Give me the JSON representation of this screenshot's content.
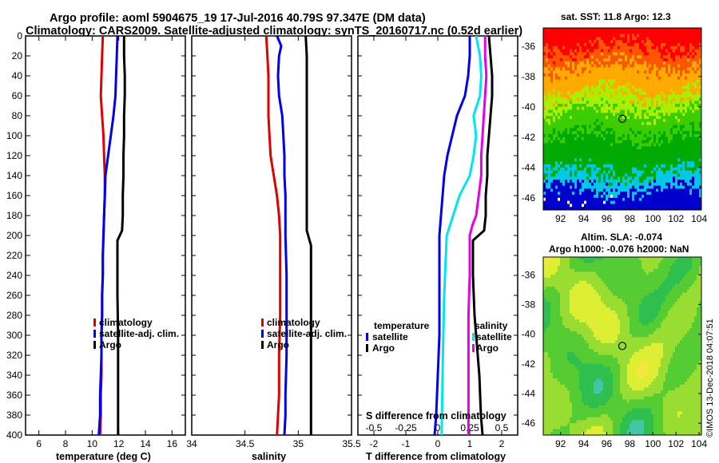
{
  "title": {
    "line1": "Argo profile: aoml 5904675_19 17-Jul-2016 40.79S 97.347E (DM data)",
    "line2": "Climatology: CARS2009. Satellite-adjusted climatology: synTS_20160717.nc (0.52d earlier)"
  },
  "colors": {
    "climatology": "#e00000",
    "satellite": "#0000ee",
    "argo": "#000000",
    "s_satellite": "#00e6f0",
    "s_argo": "#e600e6"
  },
  "chart_data": [
    {
      "type": "line",
      "panel": "temperature",
      "xlabel": "temperature (deg C)",
      "ylabel": "",
      "xlim": [
        5,
        17
      ],
      "ylim": [
        400,
        0
      ],
      "xticks": [
        6,
        8,
        10,
        12,
        14,
        16
      ],
      "yticks": [
        0,
        20,
        40,
        60,
        80,
        100,
        120,
        140,
        160,
        180,
        200,
        220,
        240,
        260,
        280,
        300,
        320,
        340,
        360,
        380,
        400
      ],
      "legend": [
        "climatology",
        "satellite-adj. clim.",
        "Argo"
      ],
      "series": [
        {
          "name": "climatology",
          "color_key": "climatology",
          "points": [
            [
              10.8,
              0
            ],
            [
              10.75,
              20
            ],
            [
              10.7,
              40
            ],
            [
              10.65,
              60
            ],
            [
              10.75,
              80
            ],
            [
              10.85,
              100
            ],
            [
              10.9,
              120
            ],
            [
              10.95,
              140
            ],
            [
              10.95,
              160
            ],
            [
              10.9,
              180
            ],
            [
              10.85,
              200
            ],
            [
              10.8,
              220
            ],
            [
              10.8,
              240
            ],
            [
              10.75,
              260
            ],
            [
              10.75,
              280
            ],
            [
              10.7,
              300
            ],
            [
              10.7,
              320
            ],
            [
              10.7,
              340
            ],
            [
              10.65,
              360
            ],
            [
              10.65,
              380
            ],
            [
              10.6,
              400
            ]
          ]
        },
        {
          "name": "satellite-adj. clim.",
          "color_key": "satellite",
          "points": [
            [
              11.9,
              0
            ],
            [
              11.85,
              20
            ],
            [
              11.8,
              40
            ],
            [
              11.75,
              60
            ],
            [
              11.6,
              80
            ],
            [
              11.4,
              100
            ],
            [
              11.2,
              120
            ],
            [
              11.0,
              140
            ],
            [
              10.95,
              160
            ],
            [
              10.9,
              180
            ],
            [
              10.85,
              200
            ],
            [
              10.8,
              220
            ],
            [
              10.8,
              240
            ],
            [
              10.75,
              260
            ],
            [
              10.75,
              280
            ],
            [
              10.7,
              300
            ],
            [
              10.7,
              320
            ],
            [
              10.65,
              340
            ],
            [
              10.6,
              360
            ],
            [
              10.6,
              380
            ],
            [
              10.5,
              400
            ]
          ]
        },
        {
          "name": "Argo",
          "color_key": "argo",
          "points": [
            [
              12.4,
              0
            ],
            [
              12.4,
              20
            ],
            [
              12.45,
              40
            ],
            [
              12.45,
              60
            ],
            [
              12.4,
              80
            ],
            [
              12.4,
              100
            ],
            [
              12.35,
              120
            ],
            [
              12.35,
              140
            ],
            [
              12.3,
              160
            ],
            [
              12.3,
              180
            ],
            [
              12.25,
              195
            ],
            [
              11.9,
              205
            ],
            [
              11.9,
              220
            ],
            [
              11.9,
              260
            ],
            [
              11.95,
              300
            ],
            [
              11.95,
              340
            ],
            [
              11.95,
              380
            ],
            [
              11.95,
              400
            ]
          ]
        }
      ]
    },
    {
      "type": "line",
      "panel": "salinity",
      "xlabel": "salinity",
      "xlim": [
        34,
        35.5
      ],
      "ylim": [
        400,
        0
      ],
      "xticks": [
        34,
        34.5,
        35,
        35.5
      ],
      "legend": [
        "climatology",
        "satellite-adj. clim.",
        "Argo"
      ],
      "series": [
        {
          "name": "climatology",
          "color_key": "climatology",
          "points": [
            [
              34.7,
              0
            ],
            [
              34.71,
              20
            ],
            [
              34.72,
              40
            ],
            [
              34.72,
              60
            ],
            [
              34.72,
              80
            ],
            [
              34.73,
              100
            ],
            [
              34.74,
              120
            ],
            [
              34.77,
              140
            ],
            [
              34.8,
              160
            ],
            [
              34.82,
              180
            ],
            [
              34.83,
              200
            ],
            [
              34.83,
              240
            ],
            [
              34.83,
              280
            ],
            [
              34.82,
              320
            ],
            [
              34.82,
              360
            ],
            [
              34.81,
              380
            ],
            [
              34.8,
              400
            ]
          ]
        },
        {
          "name": "satellite-adj. clim.",
          "color_key": "satellite",
          "points": [
            [
              34.8,
              0
            ],
            [
              34.84,
              10
            ],
            [
              34.82,
              20
            ],
            [
              34.81,
              40
            ],
            [
              34.82,
              60
            ],
            [
              34.85,
              80
            ],
            [
              34.86,
              100
            ],
            [
              34.87,
              120
            ],
            [
              34.87,
              140
            ],
            [
              34.88,
              160
            ],
            [
              34.88,
              200
            ],
            [
              34.89,
              240
            ],
            [
              34.89,
              280
            ],
            [
              34.89,
              320
            ],
            [
              34.88,
              360
            ],
            [
              34.88,
              380
            ],
            [
              34.87,
              400
            ]
          ]
        },
        {
          "name": "Argo",
          "color_key": "argo",
          "points": [
            [
              35.07,
              0
            ],
            [
              35.08,
              20
            ],
            [
              35.08,
              60
            ],
            [
              35.08,
              100
            ],
            [
              35.08,
              140
            ],
            [
              35.08,
              195
            ],
            [
              35.12,
              210
            ],
            [
              35.12,
              240
            ],
            [
              35.12,
              300
            ],
            [
              35.12,
              360
            ],
            [
              35.12,
              400
            ]
          ]
        }
      ]
    },
    {
      "type": "line",
      "panel": "difference",
      "xlabel": "T difference from climatology",
      "xlabel_top": "S difference from climatology",
      "xlim": [
        -2.5,
        2.5
      ],
      "ylim": [
        400,
        0
      ],
      "xticks": [
        -2,
        -1,
        0,
        1,
        2
      ],
      "xticklabels": [
        "-2",
        "-1",
        "0",
        "1",
        "2"
      ],
      "s_xticks": [
        -0.5,
        -0.25,
        0,
        0.25,
        0.5
      ],
      "s_xticklabels": [
        "-0.5",
        "-0.25",
        "0",
        "0.25",
        "0.5"
      ],
      "legend_left_title": "temperature",
      "legend_right_title": "salinity",
      "legend": [
        "satellite",
        "Argo"
      ],
      "series": [
        {
          "name": "T satellite",
          "color_key": "satellite",
          "points": [
            [
              1.0,
              0
            ],
            [
              1.0,
              20
            ],
            [
              0.95,
              40
            ],
            [
              0.85,
              60
            ],
            [
              0.6,
              80
            ],
            [
              0.45,
              100
            ],
            [
              0.3,
              120
            ],
            [
              0.2,
              140
            ],
            [
              0.15,
              160
            ],
            [
              0.1,
              180
            ],
            [
              0.05,
              200
            ],
            [
              0.05,
              300
            ],
            [
              0.0,
              340
            ],
            [
              -0.05,
              380
            ],
            [
              -0.1,
              400
            ]
          ]
        },
        {
          "name": "S satellite",
          "color_key": "s_satellite",
          "points": [
            [
              0.3,
              0
            ],
            [
              0.33,
              20
            ],
            [
              0.34,
              40
            ],
            [
              0.33,
              60
            ],
            [
              0.28,
              80
            ],
            [
              0.3,
              100
            ],
            [
              0.28,
              120
            ],
            [
              0.25,
              140
            ],
            [
              0.17,
              160
            ],
            [
              0.12,
              180
            ],
            [
              0.07,
              200
            ],
            [
              0.05,
              260
            ],
            [
              0.04,
              320
            ],
            [
              0.03,
              400
            ]
          ]
        },
        {
          "name": "T Argo",
          "color_key": "argo",
          "points": [
            [
              1.6,
              0
            ],
            [
              1.65,
              20
            ],
            [
              1.7,
              40
            ],
            [
              1.7,
              60
            ],
            [
              1.65,
              80
            ],
            [
              1.6,
              100
            ],
            [
              1.55,
              120
            ],
            [
              1.55,
              140
            ],
            [
              1.5,
              160
            ],
            [
              1.5,
              180
            ],
            [
              1.45,
              195
            ],
            [
              1.1,
              205
            ],
            [
              1.1,
              240
            ],
            [
              1.15,
              280
            ],
            [
              1.2,
              300
            ],
            [
              1.3,
              340
            ],
            [
              1.35,
              380
            ],
            [
              1.4,
              400
            ]
          ]
        },
        {
          "name": "S Argo",
          "color_key": "s_argo",
          "points": [
            [
              0.37,
              0
            ],
            [
              0.37,
              20
            ],
            [
              0.38,
              40
            ],
            [
              0.37,
              60
            ],
            [
              0.36,
              80
            ],
            [
              0.35,
              100
            ],
            [
              0.34,
              120
            ],
            [
              0.34,
              140
            ],
            [
              0.32,
              160
            ],
            [
              0.3,
              180
            ],
            [
              0.27,
              190
            ],
            [
              0.25,
              200
            ],
            [
              0.25,
              240
            ],
            [
              0.24,
              280
            ],
            [
              0.24,
              320
            ],
            [
              0.24,
              360
            ],
            [
              0.24,
              400
            ]
          ]
        }
      ]
    },
    {
      "type": "heatmap",
      "panel": "sst_map",
      "title": "sat. SST: 11.8 Argo: 12.3",
      "xlim": [
        90.5,
        104.2
      ],
      "ylim": [
        -46.8,
        -34.8
      ],
      "xticks": [
        92,
        94,
        96,
        98,
        100,
        102,
        104
      ],
      "yticks": [
        -36,
        -38,
        -40,
        -42,
        -44,
        -46
      ],
      "marker": [
        97.35,
        -40.79
      ],
      "colormap": [
        "#0000cc",
        "#00c8e6",
        "#00aa00",
        "#3ccd00",
        "#aaee00",
        "#ffaa00",
        "#ff5500",
        "#ff0000"
      ]
    },
    {
      "type": "heatmap",
      "panel": "sla_map",
      "title_line1": "Altim. SLA: -0.074",
      "title_line2": "Argo h1000: -0.076 h2000: NaN",
      "xlim": [
        90.5,
        104.2
      ],
      "ylim": [
        -46.8,
        -34.8
      ],
      "xticks": [
        92,
        94,
        96,
        98,
        100,
        102,
        104
      ],
      "yticks": [
        -36,
        -38,
        -40,
        -42,
        -44,
        -46
      ],
      "marker": [
        97.35,
        -40.79
      ],
      "colormap": [
        "#3fc8a8",
        "#2fbf4f",
        "#55cc33",
        "#99dd33",
        "#ddee33",
        "#f5e640"
      ]
    }
  ],
  "credit": "©IMOS 13-Dec-2018 04:07:51"
}
